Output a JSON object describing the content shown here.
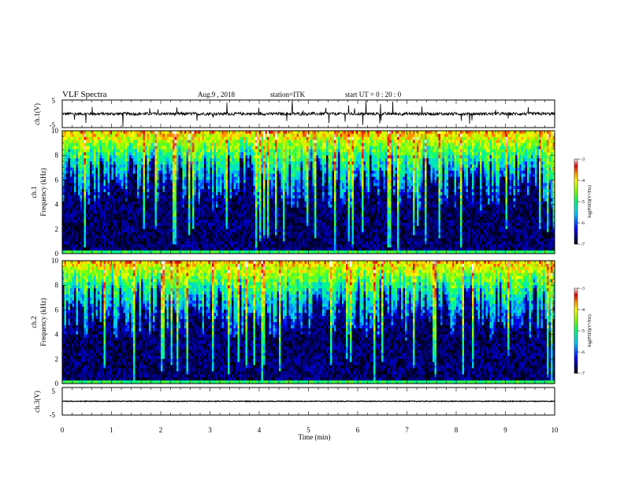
{
  "header": {
    "title": "VLF  Spectra",
    "date": "Aug.9   , 2018",
    "station": "station=ITK",
    "start": "start  UT  =    0  : 20 : 0"
  },
  "chart_data": [
    {
      "id": "ch1-waveform",
      "type": "line",
      "ylabel": "ch.1(V)",
      "ylim": [
        -5,
        5
      ],
      "yticks": [
        "5",
        "-5"
      ],
      "xlim": [
        0,
        10
      ],
      "baseline": 0,
      "description_values": "noise around ~0 V with impulsive spikes"
    },
    {
      "id": "ch1-spectrogram",
      "type": "heatmap",
      "ylabel_line1": "ch.1",
      "ylabel_line2": "Frequency  (kHz)",
      "ylim": [
        0,
        10
      ],
      "yticks": [
        "0",
        "2",
        "4",
        "6",
        "8",
        "10"
      ],
      "xlim": [
        0,
        10
      ],
      "colorbar_label": "log(PSD)(V²/Hz)",
      "colorbar_ticks": [
        "-3",
        "-4",
        "-5",
        "-6",
        "-7"
      ],
      "colorbar_range": [
        -7,
        -3
      ]
    },
    {
      "id": "ch2-spectrogram",
      "type": "heatmap",
      "ylabel_line1": "ch.2",
      "ylabel_line2": "Frequency  (kHz)",
      "ylim": [
        0,
        10
      ],
      "yticks": [
        "0",
        "2",
        "4",
        "6",
        "8",
        "10"
      ],
      "xlim": [
        0,
        10
      ],
      "colorbar_label": "log(PSD)(V²/Hz)",
      "colorbar_ticks": [
        "-3",
        "-4",
        "-5",
        "-6",
        "-7"
      ],
      "colorbar_range": [
        -7,
        -3
      ]
    },
    {
      "id": "ch3-waveform",
      "type": "line",
      "ylabel": "ch.3(V)",
      "ylim": [
        -5,
        5
      ],
      "yticks": [
        "5",
        "-5"
      ],
      "xlim": [
        0,
        10
      ],
      "baseline": 0
    }
  ],
  "xaxis": {
    "label": "Time  (min)",
    "ticks": [
      "0",
      "1",
      "2",
      "3",
      "4",
      "5",
      "6",
      "7",
      "8",
      "9",
      "10"
    ]
  }
}
